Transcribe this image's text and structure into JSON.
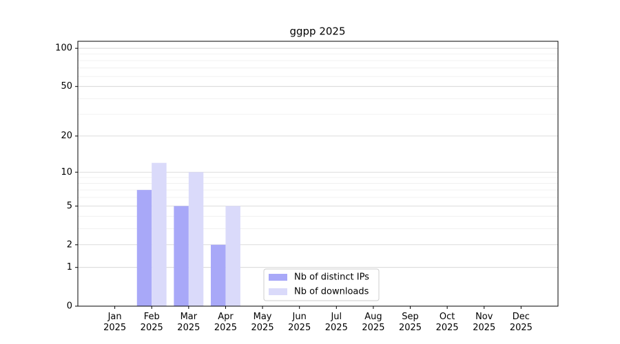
{
  "chart_data": {
    "type": "bar",
    "title": "ggpp 2025",
    "categories": [
      "Jan\n2025",
      "Feb\n2025",
      "Mar\n2025",
      "Apr\n2025",
      "May\n2025",
      "Jun\n2025",
      "Jul\n2025",
      "Aug\n2025",
      "Sep\n2025",
      "Oct\n2025",
      "Nov\n2025",
      "Dec\n2025"
    ],
    "series": [
      {
        "name": "Nb of distinct IPs",
        "color": "#a8a8f8",
        "values": [
          0,
          7,
          5,
          2,
          0,
          0,
          0,
          0,
          0,
          0,
          0,
          0
        ]
      },
      {
        "name": "Nb of downloads",
        "color": "#dadafa",
        "values": [
          0,
          12,
          10,
          5,
          0,
          0,
          0,
          0,
          0,
          0,
          0,
          0
        ]
      }
    ],
    "yscale": "log1p",
    "ylim": [
      0,
      113.5
    ],
    "yticks": [
      0,
      1,
      2,
      5,
      10,
      20,
      50,
      100
    ],
    "minor_yticks": [
      3,
      4,
      6,
      7,
      8,
      9,
      30,
      40,
      60,
      70,
      80,
      90
    ],
    "grid": true,
    "legend": "lower center"
  }
}
